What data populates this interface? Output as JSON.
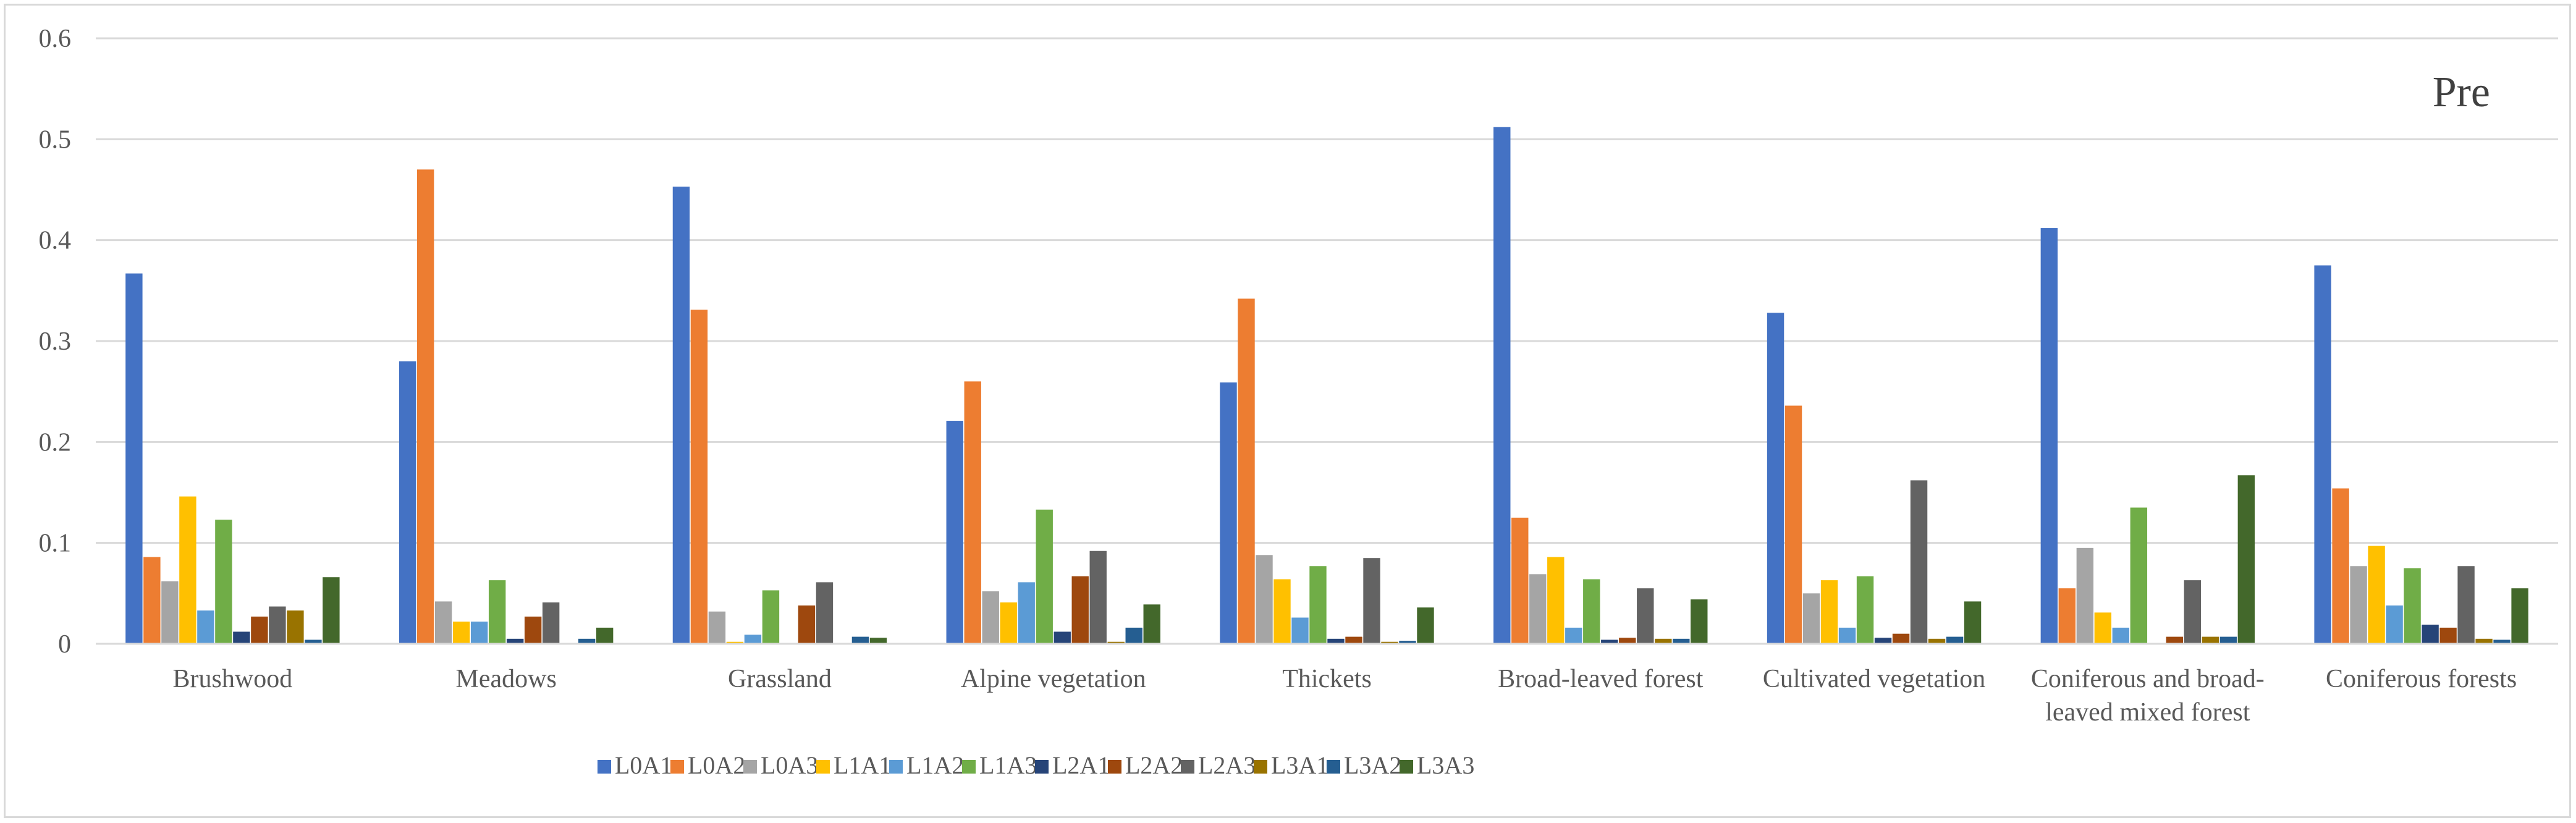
{
  "chart_data": {
    "type": "bar",
    "annotation": "Pre",
    "ylim": [
      0,
      0.6
    ],
    "yticks": [
      "0",
      "0.1",
      "0.2",
      "0.3",
      "0.4",
      "0.5",
      "0.6"
    ],
    "grid": true,
    "legend_position": "bottom",
    "categories": [
      [
        "Brushwood"
      ],
      [
        "Meadows"
      ],
      [
        "Grassland"
      ],
      [
        "Alpine vegetation"
      ],
      [
        "Thickets"
      ],
      [
        "Broad-leaved forest"
      ],
      [
        "Cultivated vegetation"
      ],
      [
        "Coniferous and broad-",
        "leaved mixed forest"
      ],
      [
        "Coniferous forests"
      ]
    ],
    "series": [
      {
        "name": "L0A1",
        "color": "#4472c4",
        "values": [
          0.367,
          0.28,
          0.453,
          0.221,
          0.259,
          0.512,
          0.328,
          0.412,
          0.375
        ]
      },
      {
        "name": "L0A2",
        "color": "#ed7d31",
        "values": [
          0.086,
          0.47,
          0.331,
          0.26,
          0.342,
          0.125,
          0.236,
          0.055,
          0.154
        ]
      },
      {
        "name": "L0A3",
        "color": "#a5a5a5",
        "values": [
          0.062,
          0.042,
          0.032,
          0.052,
          0.088,
          0.069,
          0.05,
          0.095,
          0.077
        ]
      },
      {
        "name": "L1A1",
        "color": "#ffc000",
        "values": [
          0.146,
          0.022,
          0.002,
          0.041,
          0.064,
          0.086,
          0.063,
          0.031,
          0.097
        ]
      },
      {
        "name": "L1A2",
        "color": "#5b9bd5",
        "values": [
          0.033,
          0.022,
          0.009,
          0.061,
          0.026,
          0.016,
          0.016,
          0.016,
          0.038
        ]
      },
      {
        "name": "L1A3",
        "color": "#70ad47",
        "values": [
          0.123,
          0.063,
          0.053,
          0.133,
          0.077,
          0.064,
          0.067,
          0.135,
          0.075
        ]
      },
      {
        "name": "L2A1",
        "color": "#264478",
        "values": [
          0.012,
          0.005,
          0.0,
          0.012,
          0.005,
          0.004,
          0.006,
          0.0,
          0.019
        ]
      },
      {
        "name": "L2A2",
        "color": "#9e480e",
        "values": [
          0.027,
          0.027,
          0.038,
          0.067,
          0.007,
          0.006,
          0.01,
          0.007,
          0.016
        ]
      },
      {
        "name": "L2A3",
        "color": "#636363",
        "values": [
          0.037,
          0.041,
          0.061,
          0.092,
          0.085,
          0.055,
          0.162,
          0.063,
          0.077
        ]
      },
      {
        "name": "L3A1",
        "color": "#997300",
        "values": [
          0.033,
          0.0,
          0.0,
          0.002,
          0.002,
          0.005,
          0.005,
          0.007,
          0.005
        ]
      },
      {
        "name": "L3A2",
        "color": "#255e91",
        "values": [
          0.004,
          0.005,
          0.007,
          0.016,
          0.003,
          0.005,
          0.007,
          0.007,
          0.004
        ]
      },
      {
        "name": "L3A3",
        "color": "#43682b",
        "values": [
          0.066,
          0.016,
          0.006,
          0.039,
          0.036,
          0.044,
          0.042,
          0.167,
          0.055
        ]
      }
    ]
  }
}
